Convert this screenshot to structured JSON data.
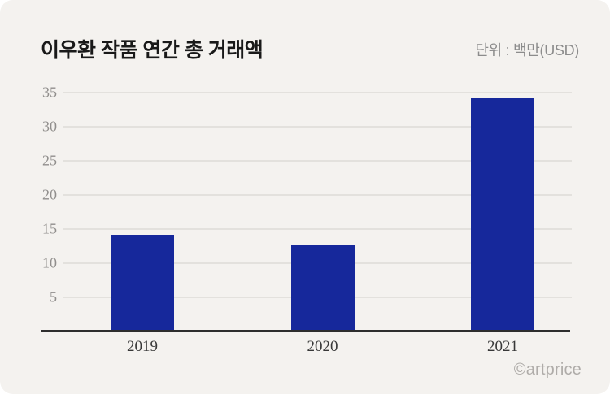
{
  "header": {
    "title": "이우환 작품 연간 총 거래액",
    "unit_label": "단위 : 백만(USD)"
  },
  "footer": {
    "credit": "©artprice"
  },
  "colors": {
    "card_background": "#F4F2EF",
    "bar": "#16289B",
    "axis_line": "#2E2E2E",
    "gridline": "#E3E1DD",
    "y_tick_label": "#908E8C",
    "x_axis_label": "#383838",
    "title": "#191919",
    "unit_label": "#8C8C8C",
    "credit": "#AFACA9"
  },
  "chart_data": {
    "type": "bar",
    "title": "이우환 작품 연간 총 거래액",
    "unit": "백만(USD)",
    "categories": [
      "2019",
      "2020",
      "2021"
    ],
    "values": [
      14.2,
      12.6,
      34.2
    ],
    "xlabel": "",
    "ylabel": "",
    "ylim": [
      0,
      35
    ],
    "yticks": [
      5,
      10,
      15,
      20,
      25,
      30,
      35
    ],
    "grid": true,
    "legend": false,
    "legend_position": "none"
  }
}
